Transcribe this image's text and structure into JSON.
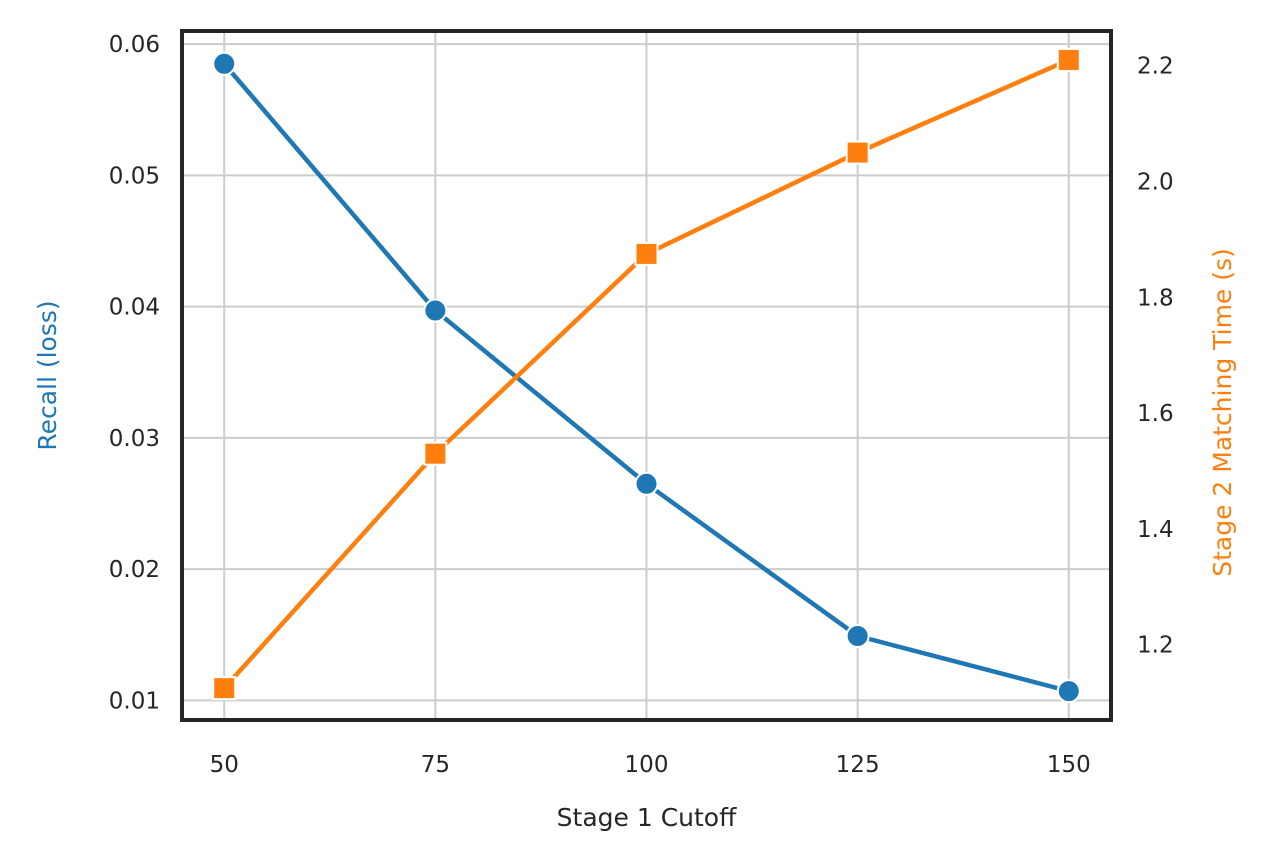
{
  "chart_data": {
    "type": "line",
    "xlabel": "Stage 1 Cutoff",
    "x": [
      50,
      75,
      100,
      125,
      150
    ],
    "xlim": [
      45,
      155
    ],
    "xticks": [
      50,
      75,
      100,
      125,
      150
    ],
    "left_axis": {
      "label": "Recall (loss)",
      "ylim": [
        0.0085,
        0.061
      ],
      "ticks": [
        "0.01",
        "0.02",
        "0.03",
        "0.04",
        "0.05",
        "0.06"
      ]
    },
    "right_axis": {
      "label": "Stage 2 Matching Time (s)",
      "ylim": [
        1.07,
        2.26
      ],
      "ticks": [
        "1.2",
        "1.4",
        "1.6",
        "1.8",
        "2.0",
        "2.2"
      ]
    },
    "series": [
      {
        "axis": "left",
        "color": "#1f77b4",
        "marker": "circle",
        "values": [
          0.0585,
          0.0397,
          0.0265,
          0.0149,
          0.0107
        ]
      },
      {
        "axis": "right",
        "color": "#ff7f0e",
        "marker": "square",
        "values": [
          1.125,
          1.53,
          1.875,
          2.05,
          2.21
        ]
      }
    ],
    "grid": true,
    "colors": {
      "left_label": "#1f77b4",
      "right_label": "#ff7f0e",
      "text": "#262626",
      "frame": "#262626",
      "grid": "#cccccc"
    }
  }
}
